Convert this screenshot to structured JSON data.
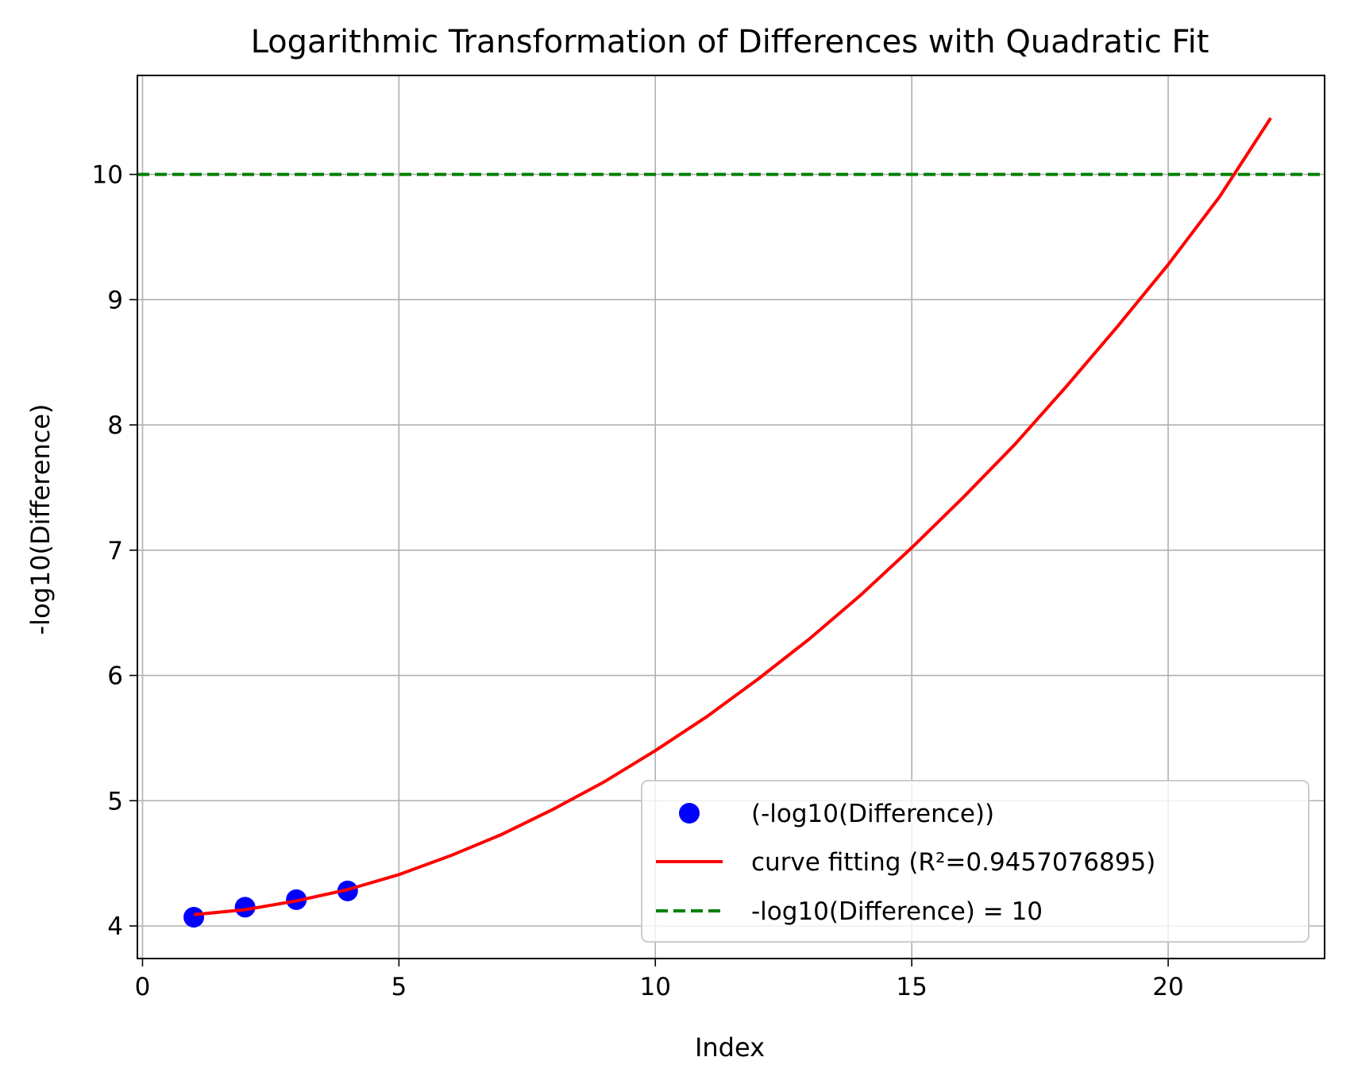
{
  "chart_data": {
    "type": "scatter",
    "title": "Logarithmic Transformation of Differences with Quadratic Fit",
    "xlabel": "Index",
    "ylabel": "-log10(Difference)",
    "xlim": [
      -0.1,
      23.05
    ],
    "ylim": [
      3.74,
      10.79
    ],
    "x_ticks": [
      0,
      5,
      10,
      15,
      20
    ],
    "y_ticks": [
      4,
      5,
      6,
      7,
      8,
      9,
      10
    ],
    "grid": true,
    "legend_position": "lower right",
    "series": [
      {
        "name": "(-log10(Difference))",
        "kind": "scatter",
        "color": "#0000ff",
        "x": [
          1,
          2,
          3,
          4
        ],
        "y": [
          4.07,
          4.15,
          4.21,
          4.28
        ]
      },
      {
        "name": "curve fitting (R²=0.9457076895)",
        "kind": "line",
        "color": "#ff0000",
        "x": [
          1,
          2,
          3,
          4,
          5,
          6,
          7,
          8,
          9,
          10,
          11,
          12,
          13,
          14,
          15,
          16,
          17,
          18,
          19,
          20,
          21,
          22
        ],
        "y": [
          4.09,
          4.13,
          4.2,
          4.29,
          4.41,
          4.56,
          4.73,
          4.93,
          5.15,
          5.4,
          5.67,
          5.97,
          6.29,
          6.64,
          7.02,
          7.42,
          7.84,
          8.3,
          8.78,
          9.28,
          9.82,
          10.45
        ]
      },
      {
        "name": "-log10(Difference) = 10",
        "kind": "hline",
        "color": "#008000",
        "y": 10
      }
    ]
  }
}
